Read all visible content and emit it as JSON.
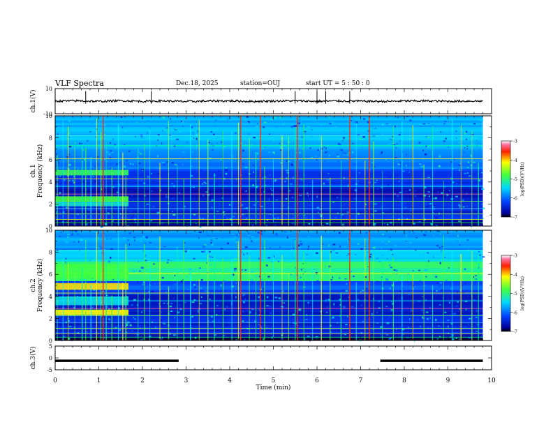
{
  "header": {
    "title": "VLF Spectra",
    "date": "Dec.18, 2025",
    "station": "station=OUJ",
    "start": "start  UT =   5 : 50 : 0"
  },
  "chart_data": [
    {
      "type": "line",
      "name": "ch1-waveform",
      "ylabel": "ch.1(V)",
      "ylim": [
        -10,
        10
      ],
      "yticks": [
        10,
        -10
      ],
      "x": [
        0,
        0.5,
        1.0,
        1.5,
        2.0,
        2.5,
        3.0,
        3.5,
        4.0,
        4.5,
        5.0,
        5.5,
        6.0,
        6.5,
        7.0,
        7.5,
        8.0,
        8.5,
        9.0,
        9.5,
        9.8
      ],
      "y": [
        0,
        0.3,
        -0.2,
        0.4,
        -0.1,
        0.2,
        -0.3,
        0.1,
        0.2,
        -0.2,
        0.1,
        0.3,
        -0.1,
        0.2,
        0.0,
        -0.2,
        0.1,
        0.2,
        -0.1,
        0.1,
        0.0
      ]
    },
    {
      "type": "heatmap",
      "name": "ch1-spectrogram",
      "ylabel": "ch.1\nFrequency (kHz)",
      "ylabel_lines": [
        "ch.1",
        "Frequency (kHz)"
      ],
      "ylim": [
        0,
        10
      ],
      "yticks": [
        0,
        2,
        4,
        6,
        8,
        10
      ],
      "colorbar": {
        "label": "log(PSD)(V²/Hz)",
        "range": [
          -7,
          -3
        ],
        "ticks": [
          -3,
          -4,
          -5,
          -6,
          -7
        ]
      }
    },
    {
      "type": "heatmap",
      "name": "ch2-spectrogram",
      "ylabel": "ch.2\nFrequency (kHz)",
      "ylabel_lines": [
        "ch.2",
        "Frequency (kHz)"
      ],
      "ylim": [
        0,
        10
      ],
      "yticks": [
        0,
        2,
        4,
        6,
        8,
        10
      ],
      "colorbar": {
        "label": "log(PSD)(V²/Hz)",
        "range": [
          -7,
          -3
        ],
        "ticks": [
          -3,
          -4,
          -5,
          -6,
          -7
        ]
      }
    },
    {
      "type": "line",
      "name": "ch3-signal",
      "ylabel": "ch.3(V)",
      "ylim": [
        -5,
        5
      ],
      "yticks": [
        5,
        0,
        -5
      ],
      "segments": [
        {
          "x": [
            0,
            2.83
          ],
          "y": [
            -1.2,
            -1.2
          ]
        },
        {
          "x": [
            7.45,
            9.8
          ],
          "y": [
            -1.2,
            -1.2
          ]
        }
      ]
    }
  ],
  "x_axis": {
    "label": "Time (min)",
    "range": [
      0,
      10
    ],
    "ticks": [
      0,
      1,
      2,
      3,
      4,
      5,
      6,
      7,
      8,
      9,
      10
    ]
  }
}
